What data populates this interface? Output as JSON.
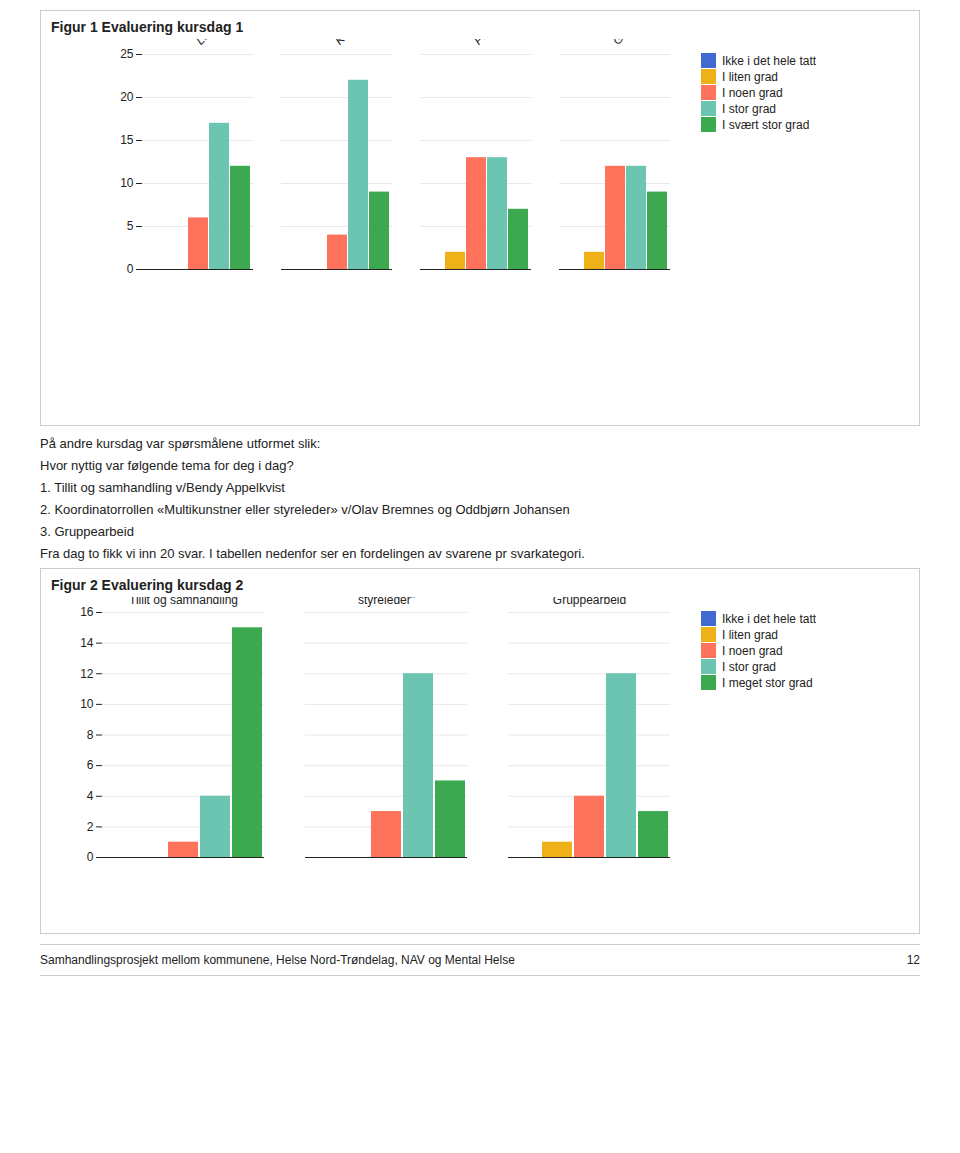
{
  "chart_data": [
    {
      "type": "bar",
      "title": "Figur 1 Evaluering kursdag 1",
      "categories": [
        "Loverk knyttet til koordinator …",
        "Koordinatorrollen og…",
        "Presentasjon fra kommunene",
        "Gruppearbeid"
      ],
      "series": [
        {
          "name": "Ikke i det hele tatt",
          "values": [
            0,
            0,
            0,
            0
          ]
        },
        {
          "name": "I liten grad",
          "values": [
            0,
            0,
            2,
            2
          ]
        },
        {
          "name": "I noen grad",
          "values": [
            6,
            4,
            13,
            12
          ]
        },
        {
          "name": "I stor grad",
          "values": [
            17,
            22,
            13,
            12
          ]
        },
        {
          "name": "I svært stor grad",
          "values": [
            12,
            9,
            7,
            9
          ]
        }
      ],
      "ylim": [
        0,
        25
      ],
      "yticks": [
        0,
        5,
        10,
        15,
        20,
        25
      ],
      "grid": true,
      "legend": "right",
      "annotations": [
        "På andre kursdag var spørsmålene utformet slik:",
        "Hvor nyttig var følgende tema for deg i dag?",
        "1.   Tillit og samhandling v/Bendy Appelkvist",
        "2.   Koordinatorrollen «Multikunstner eller styreleder» v/Olav Bremnes og Oddbjørn Johansen",
        "3.   Gruppearbeid",
        "Fra dag to fikk vi inn 20 svar. I tabellen nedenfor ser en fordelingen av svarene pr svarkategori."
      ]
    },
    {
      "type": "bar",
      "title": "Figur 2 Evaluering kursdag 2",
      "categories": [
        "Tillit og samhandling",
        "Koordinatorrollen\n\"Multikunsner eller\nstyreleder\"",
        "Gruppearbeid"
      ],
      "series": [
        {
          "name": "Ikke i det hele tatt",
          "values": [
            0,
            0,
            0
          ]
        },
        {
          "name": "I liten grad",
          "values": [
            0,
            0,
            1
          ]
        },
        {
          "name": "I noen grad",
          "values": [
            1,
            3,
            4
          ]
        },
        {
          "name": "I stor grad",
          "values": [
            4,
            12,
            12
          ]
        },
        {
          "name": "I meget stor grad",
          "values": [
            15,
            5,
            3
          ]
        }
      ],
      "ylim": [
        0,
        16
      ],
      "yticks": [
        0,
        2,
        4,
        6,
        8,
        10,
        12,
        14,
        16
      ],
      "grid": true,
      "legend": "right",
      "annotations": [
        "Samhandlingsprosjekt mellom kommunene, Helse Nord-Trøndelag, NAV og Mental Helse",
        "12"
      ]
    }
  ]
}
